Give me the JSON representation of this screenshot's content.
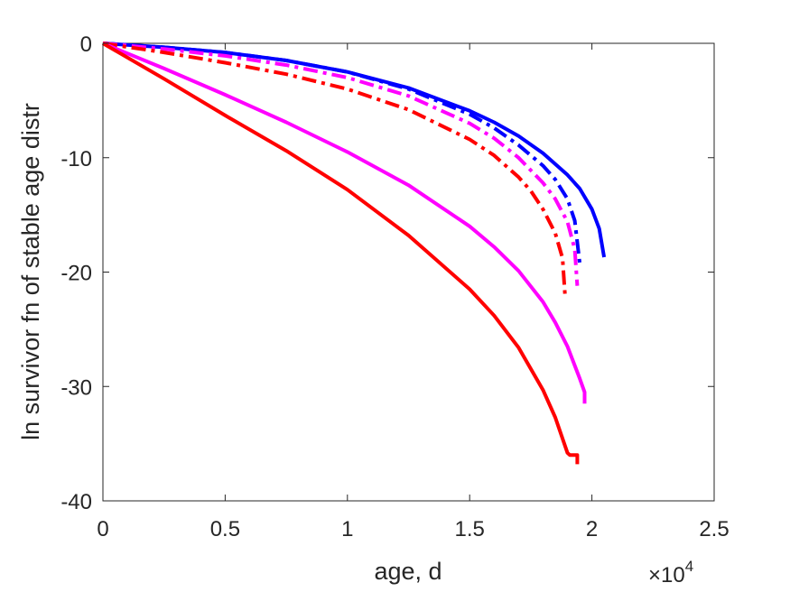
{
  "chart_data": {
    "type": "line",
    "title": "",
    "xlabel": "age, d",
    "ylabel": "ln survivor fn of stable age distr",
    "xlim": [
      0,
      25000
    ],
    "ylim": [
      -40,
      0
    ],
    "x_ticks": [
      0,
      5000,
      10000,
      15000,
      20000,
      25000
    ],
    "x_tick_labels": [
      "0",
      "0.5",
      "1",
      "1.5",
      "2",
      "2.5"
    ],
    "x_exponent_label": {
      "base": "×10",
      "power": "4"
    },
    "y_ticks": [
      -40,
      -30,
      -20,
      -10,
      0
    ],
    "y_tick_labels": [
      "-40",
      "-30",
      "-20",
      "-10",
      "0"
    ],
    "grid": false,
    "legend": "none",
    "series": [
      {
        "color": "#0000ff",
        "style": "solid",
        "x": [
          0,
          2500,
          5000,
          7500,
          10000,
          12500,
          15000,
          16000,
          17000,
          18000,
          19000,
          19500,
          20000,
          20300,
          20500
        ],
        "y": [
          0,
          -0.35,
          -0.8,
          -1.5,
          -2.5,
          -3.9,
          -5.9,
          -6.9,
          -8.1,
          -9.6,
          -11.5,
          -12.7,
          -14.5,
          -16.2,
          -18.7
        ]
      },
      {
        "color": "#0000ff",
        "style": "dashdot",
        "x": [
          0,
          2500,
          5000,
          7500,
          10000,
          12500,
          15000,
          16000,
          17000,
          18000,
          18500,
          19000,
          19300,
          19500
        ],
        "y": [
          0,
          -0.35,
          -0.8,
          -1.5,
          -2.5,
          -4.0,
          -6.2,
          -7.4,
          -8.9,
          -10.7,
          -11.9,
          -13.6,
          -15.5,
          -19.2
        ]
      },
      {
        "color": "#ff00ff",
        "style": "dashdot",
        "x": [
          0,
          2500,
          5000,
          7500,
          10000,
          12500,
          15000,
          16000,
          17000,
          18000,
          18500,
          19000,
          19300,
          19400
        ],
        "y": [
          0,
          -0.5,
          -1.1,
          -1.9,
          -3.0,
          -4.6,
          -7.0,
          -8.3,
          -10.0,
          -12.2,
          -13.6,
          -15.6,
          -18.0,
          -21.2
        ]
      },
      {
        "color": "#ff0000",
        "style": "dashdot",
        "x": [
          0,
          2500,
          5000,
          7500,
          10000,
          12500,
          15000,
          16000,
          17000,
          17500,
          18000,
          18500,
          18800,
          18900
        ],
        "y": [
          0,
          -0.8,
          -1.7,
          -2.7,
          -4.0,
          -5.8,
          -8.4,
          -9.8,
          -11.7,
          -12.9,
          -14.5,
          -16.6,
          -18.8,
          -22.0
        ]
      },
      {
        "color": "#ff00ff",
        "style": "solid",
        "x": [
          0,
          2500,
          5000,
          7500,
          10000,
          12500,
          15000,
          16000,
          17000,
          18000,
          18500,
          19000,
          19500,
          19700,
          19700
        ],
        "y": [
          0,
          -2.2,
          -4.5,
          -6.9,
          -9.5,
          -12.4,
          -16.0,
          -17.8,
          -19.9,
          -22.6,
          -24.4,
          -26.5,
          -29.3,
          -30.5,
          -31.5
        ]
      },
      {
        "color": "#ff0000",
        "style": "solid",
        "x": [
          0,
          2500,
          5000,
          7500,
          10000,
          12500,
          15000,
          16000,
          17000,
          18000,
          18500,
          19000,
          19100,
          19200,
          19400,
          19400
        ],
        "y": [
          0,
          -3.1,
          -6.3,
          -9.4,
          -12.8,
          -16.8,
          -21.5,
          -23.8,
          -26.6,
          -30.3,
          -32.7,
          -35.8,
          -36.0,
          -36.0,
          -36.0,
          -36.8
        ]
      }
    ]
  }
}
